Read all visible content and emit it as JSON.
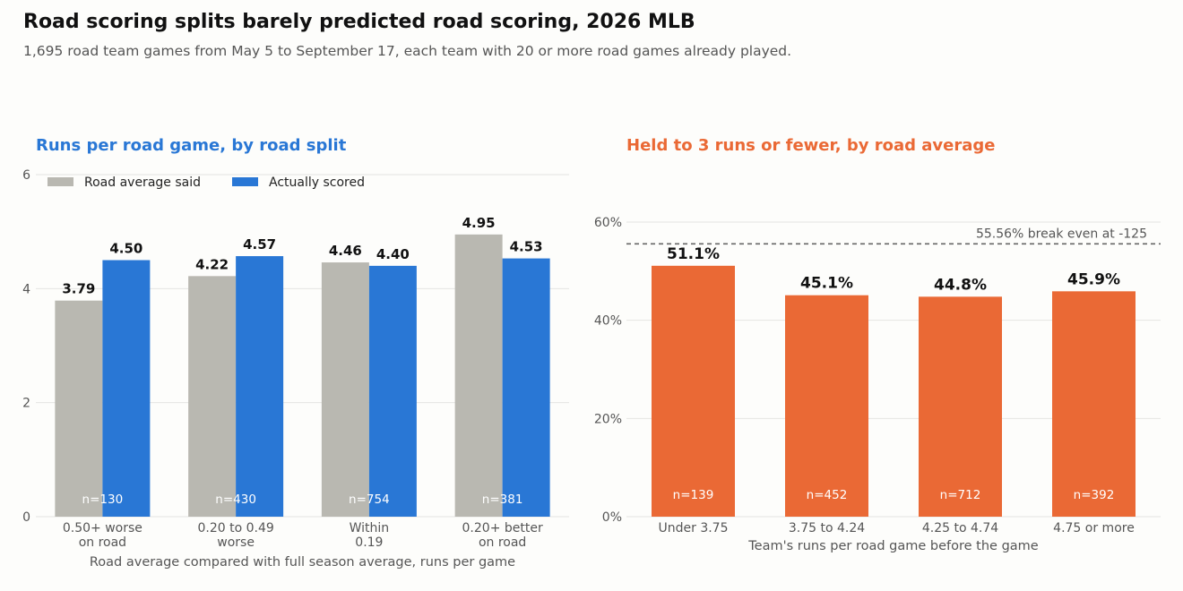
{
  "title": "Road scoring splits barely predicted road scoring, 2026 MLB",
  "subtitle": "1,695 road team games from May 5 to September 17, each team with 20 or more road games already played.",
  "colors": {
    "gray": "#b9b8b1",
    "blue": "#2977d5",
    "orange": "#ea6935",
    "grid": "#e4e4e2",
    "reference_line": "#666666"
  },
  "chart_data": [
    {
      "type": "bar",
      "title": "Runs per road game, by road split",
      "title_color": "#2977d5",
      "categories": [
        [
          "0.50+ worse",
          "on road"
        ],
        [
          "0.20 to 0.49",
          "worse"
        ],
        [
          "Within",
          "0.19"
        ],
        [
          "0.20+ better",
          "on road"
        ]
      ],
      "series": [
        {
          "name": "Road average said",
          "values": [
            3.79,
            4.22,
            4.46,
            4.95
          ],
          "color": "#b9b8b1"
        },
        {
          "name": "Actually scored",
          "values": [
            4.5,
            4.57,
            4.4,
            4.53
          ],
          "color": "#2977d5"
        }
      ],
      "value_labels": [
        [
          "3.79",
          "4.22",
          "4.46",
          "4.95"
        ],
        [
          "4.50",
          "4.57",
          "4.40",
          "4.53"
        ]
      ],
      "sample_labels": [
        "n=130",
        "n=430",
        "n=754",
        "n=381"
      ],
      "xlabel": "Road average compared with full season average, runs per game",
      "ylabel": "",
      "ylim": [
        0,
        6
      ],
      "yticks": [
        0,
        2,
        4,
        6
      ],
      "ytick_labels": [
        "0",
        "2",
        "4",
        "6"
      ],
      "grid": true,
      "legend": "top-left"
    },
    {
      "type": "bar",
      "title": "Held to 3 runs or fewer, by road average",
      "title_color": "#ea6935",
      "categories": [
        [
          "Under 3.75"
        ],
        [
          "3.75 to 4.24"
        ],
        [
          "4.25 to 4.74"
        ],
        [
          "4.75 or more"
        ]
      ],
      "values": [
        51.1,
        45.1,
        44.8,
        45.9
      ],
      "value_labels": [
        "51.1%",
        "45.1%",
        "44.8%",
        "45.9%"
      ],
      "sample_labels": [
        "n=139",
        "n=452",
        "n=712",
        "n=392"
      ],
      "color": "#ea6935",
      "xlabel": "Team's runs per road game before the game",
      "ylabel": "",
      "ylim": [
        0,
        65
      ],
      "yticks": [
        0,
        20,
        40,
        60
      ],
      "ytick_labels": [
        "0%",
        "20%",
        "40%",
        "60%"
      ],
      "reference_line": {
        "value": 55.56,
        "label": "55.56% break even at -125"
      },
      "grid": true
    }
  ]
}
